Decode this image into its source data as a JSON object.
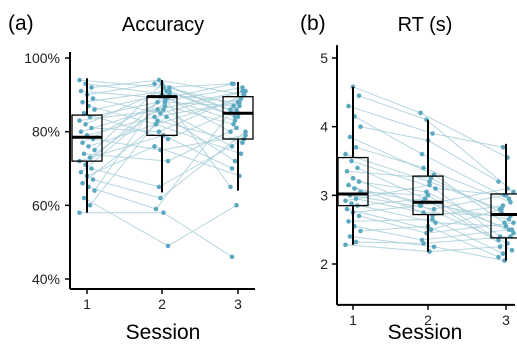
{
  "colors": {
    "point": "#5ba8c0",
    "line": "#a9cfdb",
    "box": "#000000",
    "axis": "#000000"
  },
  "chart_data": [
    {
      "type": "box",
      "panel_tag": "(a)",
      "title": "Accuracy",
      "xlabel": "Session",
      "ylabel": "",
      "categories": [
        "1",
        "2",
        "3"
      ],
      "ylim": [
        0.4,
        1.0
      ],
      "yticks": [
        0.4,
        0.6,
        0.8,
        1.0
      ],
      "yticklabels": [
        "40%",
        "60%",
        "80%",
        "100%"
      ],
      "boxes": [
        {
          "category": "1",
          "whisker_low": 0.58,
          "q1": 0.72,
          "median": 0.785,
          "q3": 0.845,
          "whisker_high": 0.945
        },
        {
          "category": "2",
          "whisker_low": 0.635,
          "q1": 0.79,
          "median": 0.895,
          "q3": 0.895,
          "whisker_high": 0.94
        },
        {
          "category": "3",
          "whisker_low": 0.64,
          "q1": 0.78,
          "median": 0.85,
          "q3": 0.895,
          "whisker_high": 0.935
        }
      ],
      "subjects": [
        [
          0.94,
          0.92,
          0.93
        ],
        [
          0.93,
          0.9,
          0.88
        ],
        [
          0.92,
          0.94,
          0.9
        ],
        [
          0.91,
          0.89,
          0.93
        ],
        [
          0.9,
          0.93,
          0.87
        ],
        [
          0.89,
          0.85,
          0.91
        ],
        [
          0.88,
          0.91,
          0.84
        ],
        [
          0.87,
          0.82,
          0.89
        ],
        [
          0.86,
          0.9,
          0.8
        ],
        [
          0.85,
          0.78,
          0.86
        ],
        [
          0.84,
          0.88,
          0.92
        ],
        [
          0.83,
          0.86,
          0.76
        ],
        [
          0.82,
          0.92,
          0.85
        ],
        [
          0.81,
          0.8,
          0.9
        ],
        [
          0.8,
          0.87,
          0.82
        ],
        [
          0.79,
          0.84,
          0.88
        ],
        [
          0.78,
          0.75,
          0.79
        ],
        [
          0.77,
          0.89,
          0.83
        ],
        [
          0.76,
          0.82,
          0.74
        ],
        [
          0.75,
          0.93,
          0.86
        ],
        [
          0.74,
          0.72,
          0.81
        ],
        [
          0.73,
          0.86,
          0.91
        ],
        [
          0.72,
          0.79,
          0.7
        ],
        [
          0.71,
          0.91,
          0.84
        ],
        [
          0.7,
          0.65,
          0.78
        ],
        [
          0.69,
          0.88,
          0.87
        ],
        [
          0.68,
          0.76,
          0.68
        ],
        [
          0.67,
          0.62,
          0.8
        ],
        [
          0.66,
          0.84,
          0.72
        ],
        [
          0.65,
          0.59,
          0.89
        ],
        [
          0.64,
          0.9,
          0.65
        ],
        [
          0.62,
          0.49,
          0.6
        ],
        [
          0.6,
          0.83,
          0.77
        ],
        [
          0.58,
          0.58,
          0.46
        ]
      ]
    },
    {
      "type": "box",
      "panel_tag": "(b)",
      "title": "RT (s)",
      "xlabel": "Session",
      "ylabel": "",
      "categories": [
        "1",
        "2",
        "3"
      ],
      "ylim": [
        1.55,
        5.1
      ],
      "yticks": [
        2,
        3,
        4,
        5
      ],
      "yticklabels": [
        "2",
        "3",
        "4",
        "5"
      ],
      "boxes": [
        {
          "category": "1",
          "whisker_low": 2.28,
          "q1": 2.85,
          "median": 3.02,
          "q3": 3.55,
          "whisker_high": 4.58
        },
        {
          "category": "2",
          "whisker_low": 2.18,
          "q1": 2.72,
          "median": 2.9,
          "q3": 3.28,
          "whisker_high": 4.1
        },
        {
          "category": "3",
          "whisker_low": 2.05,
          "q1": 2.38,
          "median": 2.72,
          "q3": 3.02,
          "whisker_high": 3.75
        }
      ],
      "subjects": [
        [
          4.58,
          4.2,
          3.55
        ],
        [
          4.45,
          4.1,
          3.05
        ],
        [
          4.3,
          3.9,
          3.7
        ],
        [
          4.15,
          3.6,
          2.95
        ],
        [
          4.0,
          3.8,
          3.2
        ],
        [
          3.85,
          3.3,
          2.6
        ],
        [
          3.7,
          3.4,
          2.9
        ],
        [
          3.6,
          3.2,
          2.8
        ],
        [
          3.5,
          3.1,
          3.0
        ],
        [
          3.4,
          2.95,
          2.5
        ],
        [
          3.35,
          3.25,
          2.75
        ],
        [
          3.25,
          2.85,
          3.1
        ],
        [
          3.2,
          3.05,
          2.45
        ],
        [
          3.15,
          2.7,
          2.85
        ],
        [
          3.1,
          2.9,
          2.65
        ],
        [
          3.05,
          3.0,
          2.35
        ],
        [
          3.0,
          2.8,
          3.0
        ],
        [
          2.95,
          2.75,
          2.7
        ],
        [
          2.92,
          3.15,
          2.4
        ],
        [
          2.88,
          2.6,
          2.55
        ],
        [
          2.85,
          2.95,
          2.2
        ],
        [
          2.8,
          2.5,
          2.8
        ],
        [
          2.75,
          2.85,
          2.3
        ],
        [
          2.7,
          2.45,
          2.6
        ],
        [
          2.62,
          2.65,
          2.15
        ],
        [
          2.55,
          2.35,
          2.5
        ],
        [
          2.48,
          2.55,
          2.1
        ],
        [
          2.4,
          2.25,
          2.05
        ],
        [
          2.32,
          2.3,
          2.4
        ],
        [
          2.28,
          2.18,
          2.25
        ]
      ]
    }
  ]
}
